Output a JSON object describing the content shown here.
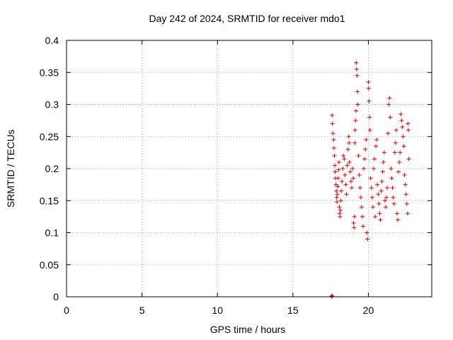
{
  "chart_data": {
    "type": "scatter",
    "title": "Day 242 of 2024, SRMTID for receiver mdo1",
    "xlabel": "GPS time / hours",
    "ylabel": "SRMTID / TECUs",
    "xlim": [
      0,
      24.2
    ],
    "ylim": [
      0,
      0.4
    ],
    "xticks": [
      0,
      5,
      10,
      15,
      20
    ],
    "xtick_labels": [
      "0",
      "5",
      "10",
      "15",
      "20"
    ],
    "yticks": [
      0,
      0.05,
      0.1,
      0.15,
      0.2,
      0.25,
      0.3,
      0.35,
      0.4
    ],
    "ytick_labels": [
      "0",
      "0.05",
      "0.1",
      "0.15",
      "0.2",
      "0.25",
      "0.3",
      "0.35",
      "0.4"
    ],
    "grid": true,
    "marker": "+",
    "series": [
      {
        "name": "SRMTID",
        "color": "#e00000",
        "points": [
          [
            17.55,
            0.0
          ],
          [
            17.58,
            0.001
          ],
          [
            17.6,
            0.002
          ],
          [
            17.6,
            0.283
          ],
          [
            17.62,
            0.27
          ],
          [
            17.65,
            0.255
          ],
          [
            17.7,
            0.245
          ],
          [
            17.72,
            0.232
          ],
          [
            17.75,
            0.22
          ],
          [
            17.78,
            0.205
          ],
          [
            17.8,
            0.195
          ],
          [
            17.82,
            0.185
          ],
          [
            17.85,
            0.175
          ],
          [
            17.88,
            0.165
          ],
          [
            17.9,
            0.155
          ],
          [
            17.92,
            0.148
          ],
          [
            17.95,
            0.16
          ],
          [
            17.98,
            0.172
          ],
          [
            18.0,
            0.185
          ],
          [
            18.02,
            0.198
          ],
          [
            18.05,
            0.21
          ],
          [
            18.08,
            0.14
          ],
          [
            18.1,
            0.13
          ],
          [
            18.12,
            0.125
          ],
          [
            18.15,
            0.135
          ],
          [
            18.18,
            0.15
          ],
          [
            18.2,
            0.165
          ],
          [
            18.25,
            0.18
          ],
          [
            18.3,
            0.2
          ],
          [
            18.35,
            0.22
          ],
          [
            18.4,
            0.215
          ],
          [
            18.45,
            0.19
          ],
          [
            18.5,
            0.175
          ],
          [
            18.55,
            0.16
          ],
          [
            18.6,
            0.205
          ],
          [
            18.65,
            0.23
          ],
          [
            18.7,
            0.25
          ],
          [
            18.72,
            0.24
          ],
          [
            18.75,
            0.21
          ],
          [
            18.8,
            0.195
          ],
          [
            18.85,
            0.18
          ],
          [
            18.9,
            0.17
          ],
          [
            18.95,
            0.2
          ],
          [
            19.0,
            0.185
          ],
          [
            19.02,
            0.115
          ],
          [
            19.05,
            0.108
          ],
          [
            19.08,
            0.125
          ],
          [
            19.1,
            0.24
          ],
          [
            19.12,
            0.26
          ],
          [
            19.15,
            0.275
          ],
          [
            19.18,
            0.29
          ],
          [
            19.2,
            0.365
          ],
          [
            19.22,
            0.355
          ],
          [
            19.25,
            0.345
          ],
          [
            19.28,
            0.32
          ],
          [
            19.3,
            0.3
          ],
          [
            19.35,
            0.22
          ],
          [
            19.4,
            0.19
          ],
          [
            19.45,
            0.17
          ],
          [
            19.5,
            0.155
          ],
          [
            19.55,
            0.14
          ],
          [
            19.6,
            0.125
          ],
          [
            19.65,
            0.11
          ],
          [
            19.7,
            0.2
          ],
          [
            19.75,
            0.215
          ],
          [
            19.8,
            0.23
          ],
          [
            19.85,
            0.245
          ],
          [
            19.9,
            0.1
          ],
          [
            19.95,
            0.09
          ],
          [
            20.0,
            0.335
          ],
          [
            20.02,
            0.325
          ],
          [
            20.05,
            0.305
          ],
          [
            20.08,
            0.28
          ],
          [
            20.1,
            0.26
          ],
          [
            20.15,
            0.185
          ],
          [
            20.2,
            0.17
          ],
          [
            20.25,
            0.155
          ],
          [
            20.3,
            0.14
          ],
          [
            20.35,
            0.2
          ],
          [
            20.4,
            0.215
          ],
          [
            20.45,
            0.125
          ],
          [
            20.5,
            0.235
          ],
          [
            20.55,
            0.245
          ],
          [
            20.6,
            0.175
          ],
          [
            20.65,
            0.16
          ],
          [
            20.7,
            0.145
          ],
          [
            20.75,
            0.13
          ],
          [
            20.8,
            0.12
          ],
          [
            20.85,
            0.165
          ],
          [
            20.9,
            0.18
          ],
          [
            20.95,
            0.195
          ],
          [
            21.0,
            0.21
          ],
          [
            21.05,
            0.225
          ],
          [
            21.1,
            0.15
          ],
          [
            21.15,
            0.14
          ],
          [
            21.2,
            0.155
          ],
          [
            21.25,
            0.17
          ],
          [
            21.3,
            0.255
          ],
          [
            21.35,
            0.3
          ],
          [
            21.4,
            0.31
          ],
          [
            21.45,
            0.28
          ],
          [
            21.5,
            0.2
          ],
          [
            21.55,
            0.185
          ],
          [
            21.6,
            0.17
          ],
          [
            21.65,
            0.155
          ],
          [
            21.7,
            0.145
          ],
          [
            21.75,
            0.225
          ],
          [
            21.8,
            0.24
          ],
          [
            21.85,
            0.26
          ],
          [
            21.9,
            0.13
          ],
          [
            21.95,
            0.12
          ],
          [
            22.0,
            0.195
          ],
          [
            22.05,
            0.21
          ],
          [
            22.1,
            0.225
          ],
          [
            22.15,
            0.285
          ],
          [
            22.2,
            0.275
          ],
          [
            22.25,
            0.265
          ],
          [
            22.3,
            0.25
          ],
          [
            22.35,
            0.235
          ],
          [
            22.4,
            0.19
          ],
          [
            22.45,
            0.175
          ],
          [
            22.5,
            0.16
          ],
          [
            22.55,
            0.145
          ],
          [
            22.6,
            0.13
          ],
          [
            22.62,
            0.27
          ],
          [
            22.65,
            0.26
          ],
          [
            22.68,
            0.215
          ]
        ]
      }
    ]
  }
}
